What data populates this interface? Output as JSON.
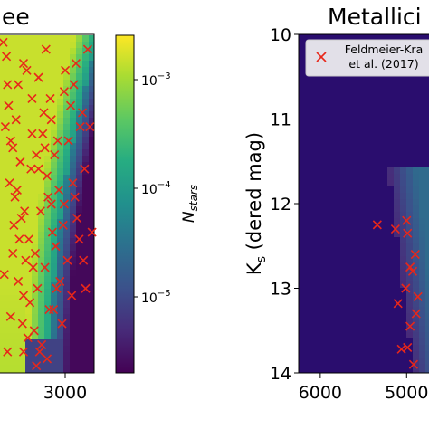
{
  "chart_data": [
    {
      "type": "heatmap",
      "title": "ee",
      "x_ticks": [
        "3000"
      ],
      "series": [
        {
          "name": "",
          "marker": "x",
          "color": "#e8271a",
          "points": [
            [
              2430,
              9.5
            ],
            [
              2470,
              10.1
            ],
            [
              2500,
              10.9
            ],
            [
              2540,
              11.7
            ],
            [
              2580,
              12.3
            ],
            [
              2620,
              13.1
            ],
            [
              2660,
              13.7
            ],
            [
              2700,
              10.3
            ],
            [
              2740,
              11.1
            ],
            [
              2780,
              11.9
            ],
            [
              2820,
              12.7
            ],
            [
              2860,
              13.3
            ],
            [
              2450,
              10.7
            ],
            [
              2490,
              11.5
            ],
            [
              2530,
              12.1
            ],
            [
              2570,
              12.9
            ],
            [
              2610,
              13.5
            ],
            [
              2650,
              9.9
            ],
            [
              2690,
              11.3
            ],
            [
              2730,
              12.5
            ],
            [
              2770,
              13.9
            ],
            [
              2810,
              10.5
            ],
            [
              2850,
              11.7
            ],
            [
              2890,
              12.2
            ],
            [
              2930,
              13.0
            ],
            [
              2460,
              9.7
            ],
            [
              2480,
              10.4
            ],
            [
              2520,
              11.0
            ],
            [
              2560,
              11.6
            ],
            [
              2600,
              12.0
            ],
            [
              2640,
              12.6
            ],
            [
              2680,
              13.2
            ],
            [
              2720,
              13.6
            ],
            [
              2760,
              10.0
            ],
            [
              2800,
              10.8
            ],
            [
              2840,
              11.4
            ],
            [
              2880,
              11.8
            ],
            [
              2920,
              12.4
            ],
            [
              2960,
              12.9
            ],
            [
              3000,
              10.2
            ],
            [
              3040,
              10.9
            ],
            [
              3080,
              11.5
            ],
            [
              3120,
              12.0
            ],
            [
              2440,
              12.8
            ],
            [
              2500,
              13.4
            ],
            [
              2550,
              10.6
            ],
            [
              2590,
              11.2
            ],
            [
              2630,
              11.9
            ],
            [
              2670,
              12.3
            ],
            [
              2710,
              12.7
            ],
            [
              2750,
              13.0
            ],
            [
              2790,
              13.8
            ],
            [
              2830,
              9.6
            ],
            [
              2870,
              10.3
            ],
            [
              2910,
              11.1
            ],
            [
              2950,
              11.6
            ],
            [
              2990,
              12.1
            ],
            [
              3030,
              12.6
            ],
            [
              3070,
              13.1
            ],
            [
              3110,
              9.8
            ],
            [
              3150,
              10.7
            ],
            [
              3190,
              11.3
            ],
            [
              2470,
              13.9
            ],
            [
              2520,
              12.5
            ],
            [
              2570,
              10.1
            ],
            [
              2620,
              9.8
            ],
            [
              2700,
              10.8
            ],
            [
              2760,
              11.3
            ],
            [
              2820,
              11.0
            ],
            [
              2880,
              10.6
            ],
            [
              2940,
              10.9
            ],
            [
              3000,
              11.8
            ],
            [
              3060,
              10.4
            ],
            [
              3100,
              11.7
            ],
            [
              3140,
              12.3
            ],
            [
              3180,
              12.6
            ],
            [
              3200,
              13.0
            ],
            [
              2980,
              13.5
            ],
            [
              2900,
              13.3
            ],
            [
              2840,
              14.0
            ],
            [
              2620,
              13.9
            ],
            [
              2740,
              14.1
            ],
            [
              3010,
              9.9
            ],
            [
              3090,
              10.1
            ],
            [
              3170,
              10.5
            ],
            [
              3220,
              9.6
            ],
            [
              3240,
              10.7
            ],
            [
              3260,
              12.2
            ]
          ]
        }
      ],
      "colorbar": {
        "label": "N_stars",
        "label_main": "N",
        "label_sub": "stars",
        "scale": "log",
        "ticks": [
          {
            "base": "10",
            "exp": "−3"
          },
          {
            "base": "10",
            "exp": "−4"
          },
          {
            "base": "10",
            "exp": "−5"
          }
        ],
        "colormap": "viridis"
      }
    },
    {
      "type": "heatmap",
      "title": "Metallici",
      "xlabel": "",
      "ylabel_main": "K",
      "ylabel_sub": "s",
      "ylabel_rest": " (dered mag)",
      "y_ticks": [
        "10",
        "11",
        "12",
        "13",
        "14"
      ],
      "ylim": [
        14,
        10
      ],
      "x_ticks": [
        "6000",
        "5000"
      ],
      "xlim": [
        6250,
        4720
      ],
      "legend": {
        "position": "top",
        "entries": [
          {
            "line1": "Feldmeier-Kra",
            "line2": "et al. (2017)",
            "marker": "x",
            "color": "#e8271a"
          }
        ]
      },
      "series": [
        {
          "name": "Feldmeier-Kra et al. (2017)",
          "marker": "x",
          "color": "#e8271a",
          "points": [
            [
              5340,
              12.25
            ],
            [
              5130,
              12.3
            ],
            [
              5100,
              13.18
            ],
            [
              4990,
              12.35
            ],
            [
              4960,
              12.75
            ],
            [
              5010,
              13.0
            ],
            [
              4900,
              12.6
            ],
            [
              4930,
              12.8
            ],
            [
              4870,
              13.1
            ],
            [
              4960,
              13.45
            ],
            [
              4990,
              13.7
            ],
            [
              5060,
              13.72
            ],
            [
              4920,
              13.9
            ],
            [
              5000,
              12.2
            ],
            [
              4890,
              13.3
            ]
          ]
        }
      ]
    }
  ]
}
